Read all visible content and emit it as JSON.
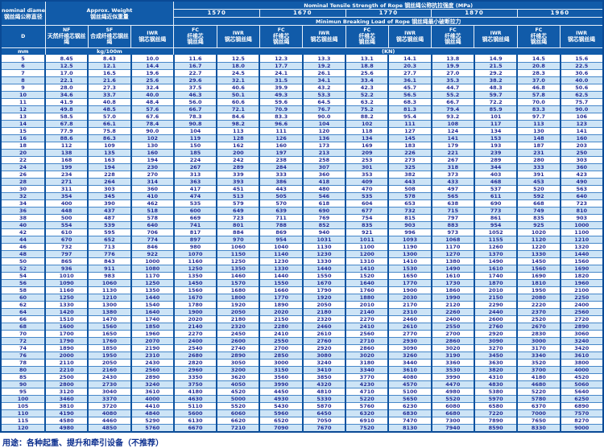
{
  "header": {
    "diameter": {
      "en": "nominal diameter",
      "zh": "钢丝绳公称直径",
      "symbol": "D",
      "unit": "mm"
    },
    "weight": {
      "en": "Approx. Weight",
      "zh": "钢丝绳近似重量",
      "unit": "kg/100m"
    },
    "nf": {
      "code": "NF",
      "zh": "天然纤维芯钢丝绳"
    },
    "sf": {
      "code": "SF",
      "zh": "合成纤维芯钢丝绳"
    },
    "iwr_weight": {
      "code": "IWR",
      "zh": "钢芯钢丝绳"
    },
    "strength": {
      "en": "Nominal Tensile Strength of Rope",
      "zh": "钢丝绳公称抗拉强度",
      "unit": "(MPa)",
      "grades": [
        "1570",
        "1670",
        "1770",
        "1870",
        "1960"
      ]
    },
    "breaking": {
      "en": "Minimun Breaking Load of Rope",
      "zh": "钢丝绳最小破断拉力",
      "unit": "(KN)"
    },
    "fc": {
      "code": "FC",
      "zh1": "纤维芯",
      "zh2": "钢丝绳"
    },
    "iwrc": {
      "code": "IWR",
      "zh": "钢芯钢丝绳"
    }
  },
  "colors": {
    "header_bg": "#115ba9",
    "stripe_bg": "#cde4f6",
    "grid_line": "#4687c9",
    "column_line": "#0d53a0",
    "value_text": "#232d96",
    "footer_text": "#0c2f8f"
  },
  "footer": {
    "usage": "用途：各种起重、提升和牵引设备（不推荐）"
  },
  "chart_data": {
    "type": "table",
    "title": "Nominal Tensile Strength of Rope 钢丝绳公称抗拉强度 (MPa)",
    "columns": [
      "D mm",
      "NF kg/100m",
      "SF kg/100m",
      "IWR kg/100m",
      "FC 1570",
      "IWR 1570",
      "FC 1670",
      "IWR 1670",
      "FC 1770",
      "IWR 1770",
      "FC 1870",
      "IWR 1870",
      "FC 1960",
      "IWR 1960"
    ],
    "rows": [
      [
        "5",
        "8.45",
        "8.43",
        "10.0",
        "11.6",
        "12.5",
        "12.3",
        "13.3",
        "13.1",
        "14.1",
        "13.8",
        "14.9",
        "14.5",
        "15.6"
      ],
      [
        "6",
        "12.5",
        "12.1",
        "14.4",
        "16.7",
        "18.0",
        "17.7",
        "19.2",
        "18.8",
        "20.3",
        "19.9",
        "21.5",
        "20.8",
        "22.5"
      ],
      [
        "7",
        "17.0",
        "16.5",
        "19.6",
        "22.7",
        "24.5",
        "24.1",
        "26.1",
        "25.6",
        "27.7",
        "27.0",
        "29.2",
        "28.3",
        "30.6"
      ],
      [
        "8",
        "22.1",
        "21.6",
        "25.6",
        "29.6",
        "32.1",
        "31.5",
        "34.1",
        "33.4",
        "36.1",
        "35.3",
        "38.2",
        "37.0",
        "40.0"
      ],
      [
        "9",
        "28.0",
        "27.3",
        "32.4",
        "37.5",
        "40.6",
        "39.9",
        "43.2",
        "42.3",
        "45.7",
        "44.7",
        "48.3",
        "46.8",
        "50.6"
      ],
      [
        "10",
        "34.6",
        "33.7",
        "40.0",
        "46.3",
        "50.1",
        "49.3",
        "53.3",
        "52.2",
        "56.5",
        "55.2",
        "59.7",
        "57.8",
        "62.5"
      ],
      [
        "11",
        "41.9",
        "40.8",
        "48.4",
        "56.0",
        "60.6",
        "59.6",
        "64.5",
        "63.2",
        "68.3",
        "66.7",
        "72.2",
        "70.0",
        "75.7"
      ],
      [
        "12",
        "49.8",
        "48.5",
        "57.6",
        "66.7",
        "72.1",
        "70.9",
        "76.7",
        "75.2",
        "81.3",
        "79.4",
        "85.9",
        "83.3",
        "90.0"
      ],
      [
        "13",
        "58.5",
        "57.0",
        "67.6",
        "78.3",
        "84.6",
        "83.3",
        "90.0",
        "88.2",
        "95.4",
        "93.2",
        "101",
        "97.7",
        "106"
      ],
      [
        "14",
        "67.8",
        "66.1",
        "78.4",
        "90.8",
        "98.2",
        "96.6",
        "104",
        "102",
        "111",
        "108",
        "117",
        "113",
        "123"
      ],
      [
        "15",
        "77.9",
        "75.8",
        "90.0",
        "104",
        "113",
        "111",
        "120",
        "118",
        "127",
        "124",
        "134",
        "130",
        "141"
      ],
      [
        "16",
        "88.6",
        "86.3",
        "102",
        "119",
        "128",
        "126",
        "136",
        "134",
        "145",
        "141",
        "153",
        "148",
        "160"
      ],
      [
        "18",
        "112",
        "109",
        "130",
        "150",
        "162",
        "160",
        "173",
        "169",
        "183",
        "179",
        "193",
        "187",
        "203"
      ],
      [
        "20",
        "138",
        "135",
        "160",
        "185",
        "200",
        "197",
        "213",
        "209",
        "226",
        "221",
        "239",
        "231",
        "250"
      ],
      [
        "22",
        "168",
        "163",
        "194",
        "224",
        "242",
        "238",
        "258",
        "253",
        "273",
        "267",
        "289",
        "280",
        "303"
      ],
      [
        "24",
        "199",
        "194",
        "230",
        "267",
        "289",
        "284",
        "307",
        "301",
        "325",
        "318",
        "344",
        "333",
        "360"
      ],
      [
        "26",
        "234",
        "228",
        "270",
        "313",
        "339",
        "333",
        "360",
        "353",
        "382",
        "373",
        "403",
        "391",
        "423"
      ],
      [
        "28",
        "271",
        "264",
        "314",
        "363",
        "393",
        "386",
        "418",
        "409",
        "443",
        "433",
        "468",
        "453",
        "490"
      ],
      [
        "30",
        "311",
        "303",
        "360",
        "417",
        "451",
        "443",
        "480",
        "470",
        "508",
        "497",
        "537",
        "520",
        "563"
      ],
      [
        "32",
        "354",
        "345",
        "410",
        "474",
        "513",
        "505",
        "546",
        "535",
        "578",
        "565",
        "611",
        "592",
        "640"
      ],
      [
        "34",
        "400",
        "390",
        "462",
        "535",
        "579",
        "570",
        "618",
        "604",
        "653",
        "638",
        "690",
        "668",
        "723"
      ],
      [
        "36",
        "448",
        "437",
        "518",
        "600",
        "649",
        "639",
        "690",
        "677",
        "732",
        "715",
        "773",
        "749",
        "810"
      ],
      [
        "38",
        "500",
        "487",
        "578",
        "669",
        "723",
        "711",
        "769",
        "754",
        "815",
        "797",
        "861",
        "835",
        "903"
      ],
      [
        "40",
        "554",
        "539",
        "640",
        "741",
        "801",
        "788",
        "852",
        "835",
        "903",
        "883",
        "954",
        "925",
        "1000"
      ],
      [
        "42",
        "610",
        "595",
        "706",
        "817",
        "884",
        "869",
        "940",
        "921",
        "996",
        "973",
        "1052",
        "1020",
        "1100"
      ],
      [
        "44",
        "670",
        "652",
        "774",
        "897",
        "970",
        "954",
        "1031",
        "1011",
        "1093",
        "1068",
        "1155",
        "1120",
        "1210"
      ],
      [
        "46",
        "732",
        "713",
        "846",
        "980",
        "1060",
        "1040",
        "1130",
        "1100",
        "1190",
        "1170",
        "1260",
        "1220",
        "1320"
      ],
      [
        "48",
        "797",
        "776",
        "922",
        "1070",
        "1150",
        "1140",
        "1230",
        "1200",
        "1300",
        "1270",
        "1370",
        "1330",
        "1440"
      ],
      [
        "50",
        "865",
        "843",
        "1000",
        "1160",
        "1250",
        "1230",
        "1330",
        "1310",
        "1410",
        "1380",
        "1490",
        "1450",
        "1560"
      ],
      [
        "52",
        "936",
        "911",
        "1080",
        "1250",
        "1350",
        "1330",
        "1440",
        "1410",
        "1530",
        "1490",
        "1610",
        "1560",
        "1690"
      ],
      [
        "54",
        "1010",
        "983",
        "1170",
        "1350",
        "1460",
        "1440",
        "1550",
        "1520",
        "1650",
        "1610",
        "1740",
        "1690",
        "1820"
      ],
      [
        "56",
        "1090",
        "1060",
        "1250",
        "1450",
        "1570",
        "1550",
        "1670",
        "1640",
        "1770",
        "1730",
        "1870",
        "1810",
        "1960"
      ],
      [
        "58",
        "1160",
        "1130",
        "1350",
        "1560",
        "1680",
        "1660",
        "1790",
        "1760",
        "1900",
        "1860",
        "2010",
        "1950",
        "2100"
      ],
      [
        "60",
        "1250",
        "1210",
        "1440",
        "1670",
        "1800",
        "1770",
        "1920",
        "1880",
        "2030",
        "1990",
        "2150",
        "2080",
        "2250"
      ],
      [
        "62",
        "1330",
        "1300",
        "1540",
        "1780",
        "1920",
        "1890",
        "2050",
        "2010",
        "2170",
        "2120",
        "2290",
        "2220",
        "2400"
      ],
      [
        "64",
        "1420",
        "1380",
        "1640",
        "1900",
        "2050",
        "2020",
        "2180",
        "2140",
        "2310",
        "2260",
        "2440",
        "2370",
        "2560"
      ],
      [
        "66",
        "1510",
        "1470",
        "1740",
        "2020",
        "2180",
        "2150",
        "2320",
        "2270",
        "2460",
        "2400",
        "2600",
        "2520",
        "2720"
      ],
      [
        "68",
        "1600",
        "1560",
        "1850",
        "2140",
        "2320",
        "2280",
        "2460",
        "2410",
        "2610",
        "2550",
        "2760",
        "2670",
        "2890"
      ],
      [
        "70",
        "1700",
        "1650",
        "1960",
        "2270",
        "2450",
        "2410",
        "2610",
        "2560",
        "2770",
        "2700",
        "2920",
        "2830",
        "3060"
      ],
      [
        "72",
        "1790",
        "1760",
        "2070",
        "2400",
        "2600",
        "2550",
        "2760",
        "2710",
        "2930",
        "2860",
        "3090",
        "3000",
        "3240"
      ],
      [
        "74",
        "1890",
        "1850",
        "2190",
        "2540",
        "2740",
        "2700",
        "2920",
        "2860",
        "3090",
        "3020",
        "3270",
        "3170",
        "3420"
      ],
      [
        "76",
        "2000",
        "1950",
        "2310",
        "2680",
        "2890",
        "2850",
        "3080",
        "3020",
        "3260",
        "3190",
        "3450",
        "3340",
        "3610"
      ],
      [
        "78",
        "2110",
        "2050",
        "2430",
        "2820",
        "3050",
        "3000",
        "3240",
        "3180",
        "3440",
        "3360",
        "3630",
        "3520",
        "3800"
      ],
      [
        "80",
        "2210",
        "2160",
        "2560",
        "2960",
        "3200",
        "3150",
        "3410",
        "3340",
        "3610",
        "3530",
        "3820",
        "3700",
        "4000"
      ],
      [
        "85",
        "2500",
        "2430",
        "2890",
        "3350",
        "3620",
        "3560",
        "3850",
        "3770",
        "4080",
        "3990",
        "4310",
        "4180",
        "4520"
      ],
      [
        "90",
        "2800",
        "2730",
        "3240",
        "3750",
        "4050",
        "3990",
        "4320",
        "4230",
        "4570",
        "4470",
        "4830",
        "4680",
        "5060"
      ],
      [
        "95",
        "3120",
        "3040",
        "3610",
        "4180",
        "4520",
        "4450",
        "4810",
        "4710",
        "5100",
        "4980",
        "5380",
        "5220",
        "5640"
      ],
      [
        "100",
        "3460",
        "3370",
        "4000",
        "4630",
        "5000",
        "4930",
        "5330",
        "5220",
        "5650",
        "5520",
        "5970",
        "5780",
        "6250"
      ],
      [
        "105",
        "3810",
        "3720",
        "4410",
        "5110",
        "5520",
        "5430",
        "5870",
        "5760",
        "6230",
        "6080",
        "6580",
        "6370",
        "6890"
      ],
      [
        "110",
        "4190",
        "4080",
        "4840",
        "5600",
        "6060",
        "5960",
        "6450",
        "6320",
        "6830",
        "6680",
        "7220",
        "7000",
        "7570"
      ],
      [
        "115",
        "4580",
        "4460",
        "5290",
        "6130",
        "6620",
        "6520",
        "7050",
        "6910",
        "7470",
        "7300",
        "7890",
        "7650",
        "8270"
      ],
      [
        "120",
        "4980",
        "4850",
        "5760",
        "6670",
        "7210",
        "7090",
        "7670",
        "7520",
        "8130",
        "7940",
        "8590",
        "8330",
        "9000"
      ]
    ]
  }
}
